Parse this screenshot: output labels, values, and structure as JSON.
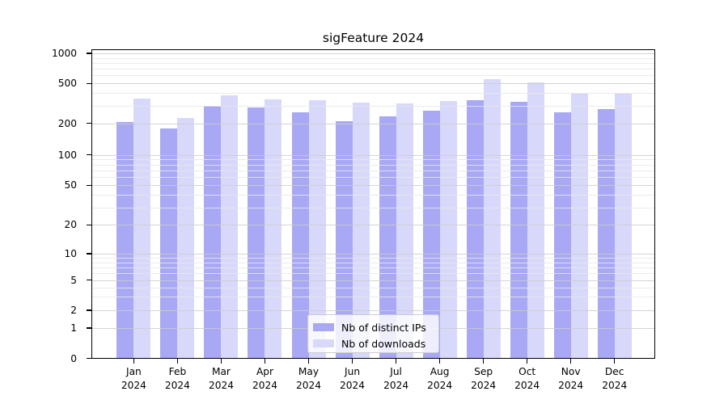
{
  "title": "sigFeature 2024",
  "colors": {
    "bar_ips": "#a8a8f4",
    "bar_downloads": "#d8d8fa",
    "grid_major": "#cdcdcd",
    "grid_minor": "#e8e8e8",
    "spine": "#000000",
    "legend_border": "#cccccc"
  },
  "legend": {
    "items": [
      {
        "label": "Nb of distinct IPs",
        "series": "ips"
      },
      {
        "label": "Nb of downloads",
        "series": "downloads"
      }
    ]
  },
  "y_axis": {
    "tick_labels": [
      "1000",
      "500",
      "200",
      "100",
      "50",
      "20",
      "10",
      "5",
      "2",
      "1",
      "0"
    ]
  },
  "x_axis": {
    "months": [
      {
        "line1": "Jan",
        "line2": "2024"
      },
      {
        "line1": "Feb",
        "line2": "2024"
      },
      {
        "line1": "Mar",
        "line2": "2024"
      },
      {
        "line1": "Apr",
        "line2": "2024"
      },
      {
        "line1": "May",
        "line2": "2024"
      },
      {
        "line1": "Jun",
        "line2": "2024"
      },
      {
        "line1": "Jul",
        "line2": "2024"
      },
      {
        "line1": "Aug",
        "line2": "2024"
      },
      {
        "line1": "Sep",
        "line2": "2024"
      },
      {
        "line1": "Oct",
        "line2": "2024"
      },
      {
        "line1": "Nov",
        "line2": "2024"
      },
      {
        "line1": "Dec",
        "line2": "2024"
      }
    ]
  },
  "chart_data": {
    "type": "bar",
    "title": "sigFeature 2024",
    "categories": [
      "Jan 2024",
      "Feb 2024",
      "Mar 2024",
      "Apr 2024",
      "May 2024",
      "Jun 2024",
      "Jul 2024",
      "Aug 2024",
      "Sep 2024",
      "Oct 2024",
      "Nov 2024",
      "Dec 2024"
    ],
    "series": [
      {
        "name": "Nb of distinct IPs",
        "values": [
          205,
          180,
          300,
          290,
          260,
          212,
          235,
          268,
          340,
          330,
          260,
          278
        ]
      },
      {
        "name": "Nb of downloads",
        "values": [
          355,
          225,
          380,
          350,
          340,
          320,
          315,
          335,
          550,
          515,
          405,
          400
        ]
      }
    ],
    "xlabel": "",
    "ylabel": "",
    "yscale": "log-with-zero-baseline",
    "y_ticks": [
      0,
      1,
      2,
      5,
      10,
      20,
      50,
      100,
      200,
      500,
      1000
    ],
    "ylim": [
      0,
      1100
    ],
    "grid": true,
    "legend_position": "lower center"
  }
}
